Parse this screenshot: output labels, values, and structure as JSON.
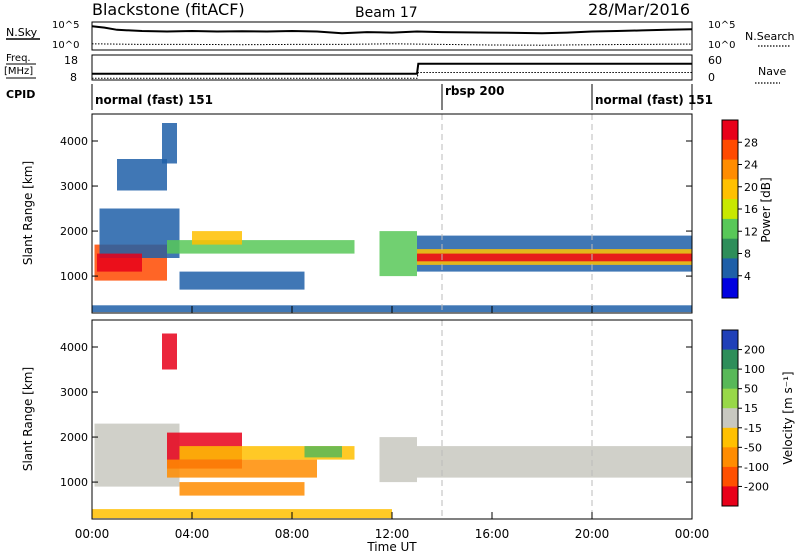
{
  "header": {
    "station": "Blackstone (fitACF)",
    "beam": "Beam 17",
    "date": "28/Mar/2016"
  },
  "panels": {
    "nsky": {
      "left_label": "N.Sky",
      "right_label": "N.Search",
      "left_ticks": [
        "10^5",
        "10^0"
      ],
      "right_ticks": [
        "10^5",
        "10^0"
      ]
    },
    "freq": {
      "left_label_top": "Freq.",
      "left_label_bottom": "[MHz]",
      "right_label": "Nave",
      "left_ticks": [
        "18",
        "8"
      ],
      "right_ticks": [
        "60",
        "0"
      ]
    },
    "cpid": {
      "label": "CPID",
      "segments": [
        {
          "label": "normal (fast) 151",
          "start": 0.0,
          "end": 14.0
        },
        {
          "label": "rbsp 200",
          "start": 14.0,
          "end": 20.0
        },
        {
          "label": "normal (fast) 151",
          "start": 20.0,
          "end": 24.0
        }
      ]
    }
  },
  "colorbars": {
    "power": {
      "label": "Power [dB]",
      "ticks": [
        "28",
        "24",
        "20",
        "16",
        "12",
        "8",
        "4"
      ],
      "colors": [
        "#e8001a",
        "#ff4a00",
        "#ff8c00",
        "#ffc000",
        "#c8e800",
        "#58c858",
        "#2e8e5a",
        "#1e5fa8",
        "#0000e0"
      ]
    },
    "velocity": {
      "label": "Velocity [m s⁻¹]",
      "ticks": [
        "200",
        "100",
        "50",
        "15",
        "-15",
        "-50",
        "-100",
        "-200"
      ],
      "colors": [
        "#2040b8",
        "#2e8e5a",
        "#58b858",
        "#98d848",
        "#c8c8c0",
        "#ffc000",
        "#ff8c00",
        "#ff5000",
        "#e8001a"
      ]
    }
  },
  "axes": {
    "x_ticks": [
      "00:00",
      "04:00",
      "08:00",
      "12:00",
      "16:00",
      "20:00",
      "00:00"
    ],
    "x_label": "Time UT",
    "y_label": "Slant Range [km]",
    "y_ticks": [
      "1000",
      "2000",
      "3000",
      "4000"
    ]
  },
  "chart_data": {
    "type": "heatmap",
    "x_range_hours": [
      0,
      24
    ],
    "y_range_km": [
      180,
      4600
    ],
    "vertical_markers_hours": [
      14,
      20
    ],
    "nsky_trace": {
      "x": [
        0,
        0.5,
        1,
        2,
        3,
        4,
        5,
        6,
        7,
        8,
        9,
        10,
        11,
        12,
        13,
        14,
        15,
        16,
        17,
        18,
        19,
        20,
        21,
        22,
        23,
        24
      ],
      "y_fraction": [
        0.85,
        0.8,
        0.72,
        0.68,
        0.66,
        0.68,
        0.66,
        0.67,
        0.66,
        0.68,
        0.66,
        0.6,
        0.64,
        0.62,
        0.66,
        0.64,
        0.63,
        0.62,
        0.61,
        0.6,
        0.62,
        0.66,
        0.68,
        0.7,
        0.72,
        0.74
      ]
    },
    "nsearch_trace": {
      "x": [
        0,
        2,
        4,
        6,
        8,
        10,
        12,
        14,
        16,
        18,
        20,
        22,
        24
      ],
      "y_fraction": [
        0.22,
        0.2,
        0.2,
        0.19,
        0.2,
        0.2,
        0.22,
        0.2,
        0.18,
        0.17,
        0.19,
        0.2,
        0.21
      ]
    },
    "freq_trace_mhz": {
      "x": [
        0,
        0.05,
        13.0,
        13.05,
        24
      ],
      "y": [
        10.5,
        10.5,
        10.5,
        14.5,
        14.5
      ]
    },
    "nave_trace": {
      "x": [
        0,
        13.0,
        13.05,
        24
      ],
      "y": [
        4,
        4,
        18,
        18
      ]
    },
    "power_regions": [
      {
        "x0": 0.1,
        "x1": 3.0,
        "y0": 900,
        "y1": 1700,
        "color": "#ff4a00"
      },
      {
        "x0": 0.3,
        "x1": 3.5,
        "y0": 1400,
        "y1": 2500,
        "color": "#1e5fa8"
      },
      {
        "x0": 0.2,
        "x1": 2.0,
        "y0": 1100,
        "y1": 1500,
        "color": "#e8001a"
      },
      {
        "x0": 3.0,
        "x1": 10.5,
        "y0": 1500,
        "y1": 1800,
        "color": "#58c858"
      },
      {
        "x0": 3.5,
        "x1": 8.5,
        "y0": 700,
        "y1": 1100,
        "color": "#1e5fa8"
      },
      {
        "x0": 4.0,
        "x1": 6.0,
        "y0": 1700,
        "y1": 2000,
        "color": "#ffc000"
      },
      {
        "x0": 1.0,
        "x1": 3.0,
        "y0": 2900,
        "y1": 3600,
        "color": "#1e5fa8"
      },
      {
        "x0": 2.8,
        "x1": 3.4,
        "y0": 3500,
        "y1": 4400,
        "color": "#1e5fa8"
      },
      {
        "x0": 11.5,
        "x1": 13.0,
        "y0": 1000,
        "y1": 2000,
        "color": "#58c858"
      },
      {
        "x0": 13.0,
        "x1": 24.0,
        "y0": 1100,
        "y1": 1900,
        "color": "#1e5fa8"
      },
      {
        "x0": 13.0,
        "x1": 24.0,
        "y0": 1250,
        "y1": 1600,
        "color": "#ffc000"
      },
      {
        "x0": 13.0,
        "x1": 24.0,
        "y0": 1330,
        "y1": 1500,
        "color": "#e8001a"
      },
      {
        "x0": 0.0,
        "x1": 24.0,
        "y0": 200,
        "y1": 350,
        "color": "#1e5fa8"
      }
    ],
    "velocity_regions": [
      {
        "x0": 0.1,
        "x1": 3.5,
        "y0": 900,
        "y1": 2300,
        "color": "#c8c8c0"
      },
      {
        "x0": 3.0,
        "x1": 6.0,
        "y0": 1300,
        "y1": 2100,
        "color": "#e8001a"
      },
      {
        "x0": 3.0,
        "x1": 9.0,
        "y0": 1100,
        "y1": 1500,
        "color": "#ff8c00"
      },
      {
        "x0": 3.5,
        "x1": 10.5,
        "y0": 1500,
        "y1": 1800,
        "color": "#ffc000"
      },
      {
        "x0": 8.5,
        "x1": 10.0,
        "y0": 1550,
        "y1": 1800,
        "color": "#58b858"
      },
      {
        "x0": 3.5,
        "x1": 8.5,
        "y0": 700,
        "y1": 1000,
        "color": "#ff8c00"
      },
      {
        "x0": 2.8,
        "x1": 3.4,
        "y0": 3500,
        "y1": 4300,
        "color": "#e8001a"
      },
      {
        "x0": 11.5,
        "x1": 13.0,
        "y0": 1000,
        "y1": 2000,
        "color": "#c8c8c0"
      },
      {
        "x0": 13.0,
        "x1": 24.0,
        "y0": 1100,
        "y1": 1800,
        "color": "#c8c8c0"
      },
      {
        "x0": 0.0,
        "x1": 12.0,
        "y0": 200,
        "y1": 400,
        "color": "#ffc000"
      }
    ]
  }
}
